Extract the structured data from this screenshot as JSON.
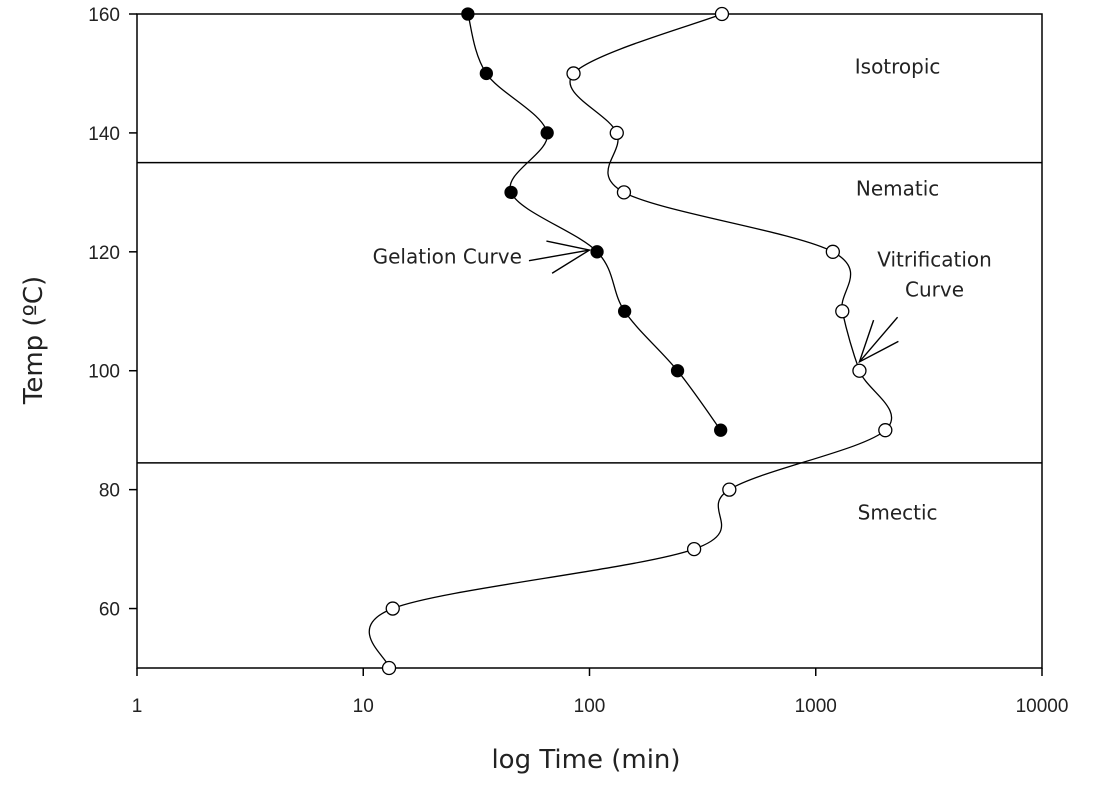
{
  "chart_data": {
    "type": "scatter",
    "title": "",
    "xlabel": "log Time (min)",
    "ylabel": "Temp (ºC)",
    "xscale": "log",
    "xlim": [
      1,
      10000
    ],
    "ylim": [
      50,
      160
    ],
    "xticks": [
      1,
      10,
      100,
      1000,
      10000
    ],
    "xtick_labels": [
      "1",
      "10",
      "100",
      "1000",
      "10000"
    ],
    "yticks": [
      60,
      80,
      100,
      120,
      140,
      160
    ],
    "ytick_labels": [
      "60",
      "80",
      "100",
      "120",
      "140",
      "160"
    ],
    "grid": false,
    "legend": "none",
    "series": [
      {
        "marker": "filled-circle",
        "color": "#000000",
        "x": [
          29,
          35,
          65,
          45,
          108,
          143,
          245,
          380
        ],
        "y": [
          160,
          150,
          140,
          130,
          120,
          110,
          100,
          90
        ]
      },
      {
        "marker": "open-circle",
        "color": "#000000",
        "x": [
          385,
          85,
          132,
          142,
          1190,
          1310,
          1560,
          2030,
          415,
          290,
          13.5,
          13
        ],
        "y": [
          160,
          150,
          140,
          130,
          120,
          110,
          100,
          90,
          80,
          70,
          60,
          50
        ]
      }
    ],
    "boundaries": [
      {
        "y": 135
      },
      {
        "y": 84.5
      }
    ],
    "regions": [
      {
        "label": "Isotropic",
        "x": 2300,
        "y": 150
      },
      {
        "label": "Nematic",
        "x": 2300,
        "y": 129.5
      },
      {
        "label": "Smectic",
        "x": 2300,
        "y": 75
      }
    ],
    "annotations": [
      {
        "lines": [
          "Gelation Curve"
        ],
        "x": 11,
        "y": 118
      },
      {
        "lines": [
          "Vitrification",
          "Curve"
        ],
        "x": 3350,
        "y": 117.5,
        "y2": 112.5
      }
    ],
    "arrows": [
      {
        "from": [
          54,
          118.5
        ],
        "to": [
          100,
          120.3
        ]
      },
      {
        "from": [
          2300,
          109
        ],
        "to": [
          1560,
          101.5
        ]
      }
    ]
  }
}
